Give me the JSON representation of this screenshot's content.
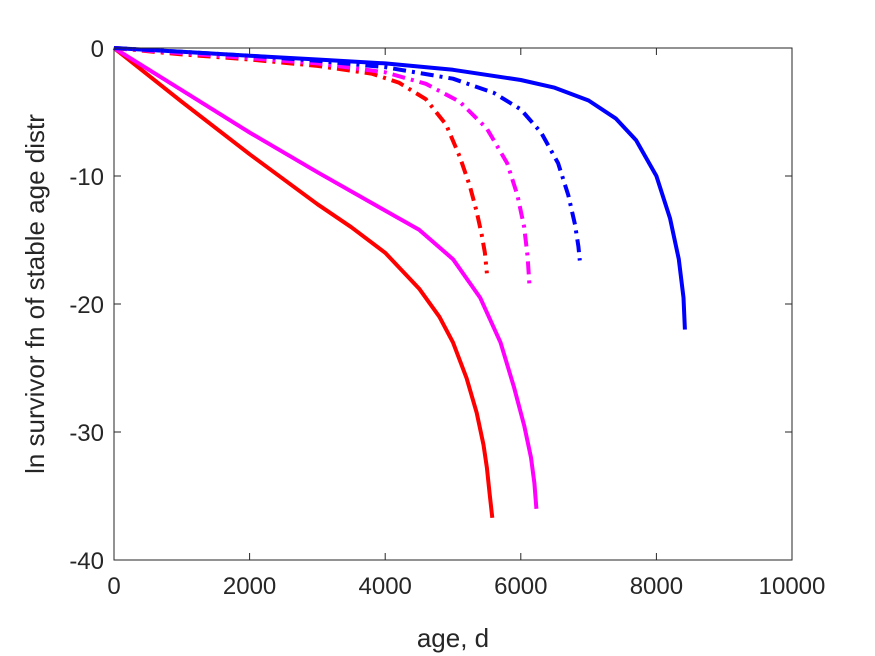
{
  "chart_data": {
    "type": "line",
    "title": "",
    "xlabel": "age, d",
    "ylabel": "ln survivor fn of stable age distr",
    "xlim": [
      0,
      10000
    ],
    "ylim": [
      -40,
      0
    ],
    "xticks": [
      0,
      2000,
      4000,
      6000,
      8000,
      10000
    ],
    "yticks": [
      0,
      -10,
      -20,
      -30,
      -40
    ],
    "xtick_labels": [
      "0",
      "2000",
      "4000",
      "6000",
      "8000",
      "10000"
    ],
    "ytick_labels": [
      "0",
      "-10",
      "-20",
      "-30",
      "-40"
    ],
    "grid": false,
    "legend": "none",
    "series": [
      {
        "color": "#ff0000",
        "style": "solid",
        "x": [
          0,
          1000,
          2000,
          3000,
          3500,
          4000,
          4500,
          4800,
          5000,
          5200,
          5350,
          5450,
          5500,
          5540,
          5580
        ],
        "y": [
          0,
          -4.2,
          -8.3,
          -12.2,
          -14.0,
          -16.0,
          -18.8,
          -21.0,
          -23.0,
          -25.8,
          -28.5,
          -31.0,
          -32.8,
          -34.8,
          -36.7
        ]
      },
      {
        "color": "#ff00ff",
        "style": "solid",
        "x": [
          0,
          1000,
          2000,
          3000,
          4000,
          4500,
          5000,
          5400,
          5700,
          5900,
          6050,
          6150,
          6200,
          6230
        ],
        "y": [
          0,
          -3.3,
          -6.6,
          -9.7,
          -12.7,
          -14.2,
          -16.5,
          -19.5,
          -23.0,
          -26.5,
          -29.5,
          -32.0,
          -34.0,
          -36.0
        ]
      },
      {
        "color": "#0000ff",
        "style": "solid",
        "x": [
          0,
          1000,
          2000,
          3000,
          4000,
          5000,
          6000,
          6500,
          7000,
          7400,
          7700,
          8000,
          8200,
          8330,
          8400,
          8420
        ],
        "y": [
          0,
          -0.3,
          -0.6,
          -0.9,
          -1.2,
          -1.7,
          -2.5,
          -3.1,
          -4.1,
          -5.5,
          -7.2,
          -10.0,
          -13.3,
          -16.5,
          -19.5,
          -22.0
        ]
      },
      {
        "color": "#ff0000",
        "style": "dashdot",
        "x": [
          0,
          1000,
          2000,
          3000,
          3800,
          4200,
          4600,
          4900,
          5100,
          5250,
          5350,
          5420,
          5470,
          5500
        ],
        "y": [
          0,
          -0.5,
          -0.9,
          -1.4,
          -2.0,
          -2.7,
          -4.0,
          -6.0,
          -8.5,
          -10.8,
          -12.8,
          -14.5,
          -16.0,
          -17.6
        ]
      },
      {
        "color": "#ff00ff",
        "style": "dashdot",
        "x": [
          0,
          1000,
          2000,
          3000,
          4000,
          4600,
          5100,
          5500,
          5800,
          5950,
          6050,
          6100,
          6130
        ],
        "y": [
          0,
          -0.4,
          -0.8,
          -1.2,
          -1.9,
          -2.8,
          -4.2,
          -6.3,
          -9.0,
          -11.5,
          -14.0,
          -16.3,
          -18.7
        ]
      },
      {
        "color": "#0000ff",
        "style": "dashdot",
        "x": [
          0,
          1000,
          2000,
          3000,
          4000,
          5000,
          5600,
          6000,
          6300,
          6550,
          6700,
          6800,
          6850,
          6870
        ],
        "y": [
          0,
          -0.3,
          -0.6,
          -1.0,
          -1.5,
          -2.4,
          -3.5,
          -4.8,
          -6.6,
          -9.0,
          -11.5,
          -13.8,
          -15.5,
          -16.6
        ]
      }
    ]
  }
}
